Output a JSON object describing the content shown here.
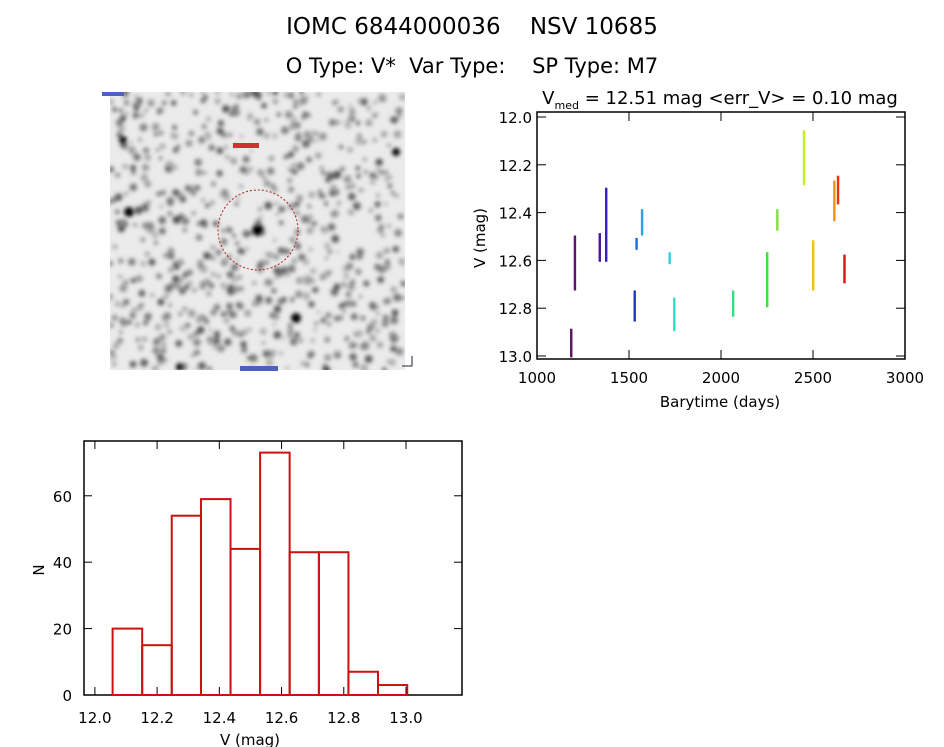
{
  "header": {
    "title": "IOMC 6844000036    NSV 10685",
    "subtitle": "O Type: V*  Var Type:    SP Type: M7"
  },
  "finder_image": {
    "description_labels_illegible": true
  },
  "chart_data": [
    {
      "type": "scatter",
      "title_parts": {
        "v": "V",
        "sub": "med",
        "rest": " = 12.51 mag <err_V> = 0.10 mag"
      },
      "xlabel": "Barytime (days)",
      "ylabel": "V (mag)",
      "xlim": [
        1000,
        3000
      ],
      "ylim": [
        13.0,
        12.0
      ],
      "y_inverted": true,
      "xticks": [
        "1000",
        "1500",
        "2000",
        "2500",
        "3000"
      ],
      "yticks": [
        "12.0",
        "12.2",
        "12.4",
        "12.6",
        "12.8",
        "13.0"
      ],
      "colormap": "rainbow by time",
      "groups": [
        {
          "t": 1185,
          "vmin": 12.89,
          "vmax": 13.0,
          "color": "#5a1660"
        },
        {
          "t": 1205,
          "vmin": 12.5,
          "vmax": 12.72,
          "color": "#5a1670"
        },
        {
          "t": 1340,
          "vmin": 12.49,
          "vmax": 12.6,
          "color": "#4a1890"
        },
        {
          "t": 1375,
          "vmin": 12.3,
          "vmax": 12.6,
          "color": "#3a20b8"
        },
        {
          "t": 1530,
          "vmin": 12.73,
          "vmax": 12.85,
          "color": "#2038c8"
        },
        {
          "t": 1540,
          "vmin": 12.51,
          "vmax": 12.55,
          "color": "#2070d0"
        },
        {
          "t": 1570,
          "vmin": 12.39,
          "vmax": 12.49,
          "color": "#30a0e0"
        },
        {
          "t": 1720,
          "vmin": 12.57,
          "vmax": 12.61,
          "color": "#30d0e0"
        },
        {
          "t": 1745,
          "vmin": 12.76,
          "vmax": 12.89,
          "color": "#30e0c8"
        },
        {
          "t": 2065,
          "vmin": 12.73,
          "vmax": 12.83,
          "color": "#30e088"
        },
        {
          "t": 2250,
          "vmin": 12.57,
          "vmax": 12.79,
          "color": "#40e040"
        },
        {
          "t": 2305,
          "vmin": 12.39,
          "vmax": 12.47,
          "color": "#80e040"
        },
        {
          "t": 2450,
          "vmin": 12.06,
          "vmax": 12.28,
          "color": "#c8f020"
        },
        {
          "t": 2500,
          "vmin": 12.52,
          "vmax": 12.72,
          "color": "#f0c020"
        },
        {
          "t": 2615,
          "vmin": 12.27,
          "vmax": 12.43,
          "color": "#f09020"
        },
        {
          "t": 2635,
          "vmin": 12.25,
          "vmax": 12.36,
          "color": "#f03010"
        },
        {
          "t": 2670,
          "vmin": 12.58,
          "vmax": 12.69,
          "color": "#e01010"
        }
      ]
    },
    {
      "type": "bar",
      "subtype": "histogram",
      "xlabel": "V (mag)",
      "ylabel": "N",
      "xlim": [
        11.965,
        13.18
      ],
      "ylim": [
        0,
        76.5
      ],
      "xticks": [
        "12.0",
        "12.2",
        "12.4",
        "12.6",
        "12.8",
        "13.0"
      ],
      "yticks": [
        "0",
        "20",
        "40",
        "60"
      ],
      "bin_edges": [
        12.057,
        12.152,
        12.247,
        12.341,
        12.436,
        12.531,
        12.626,
        12.72,
        12.815,
        12.91,
        13.004
      ],
      "values": [
        20,
        15,
        54,
        59,
        44,
        73,
        43,
        43,
        7,
        3
      ],
      "color": "#cc1111"
    }
  ]
}
